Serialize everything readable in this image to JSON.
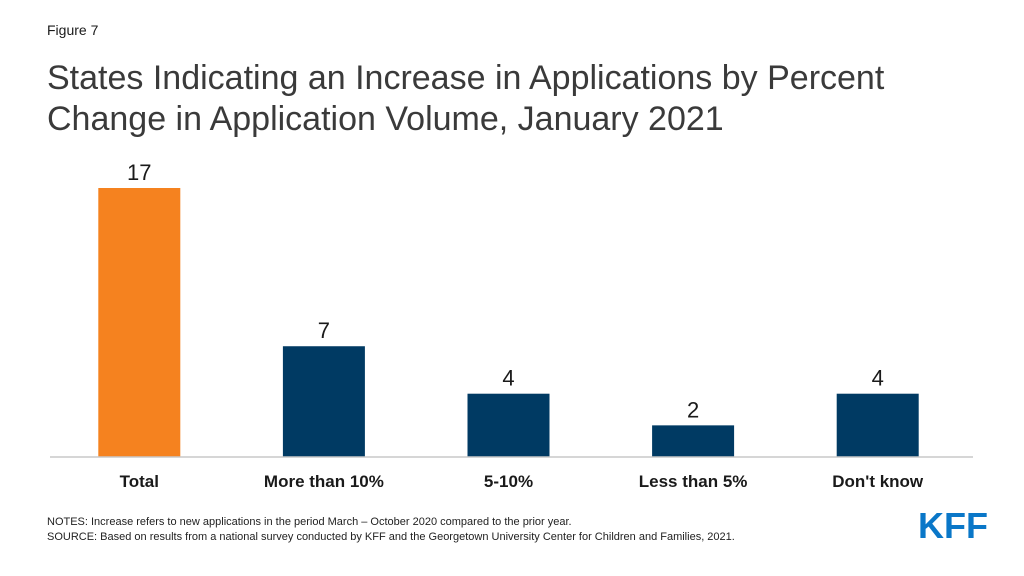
{
  "figure_label": "Figure 7",
  "title": "States Indicating an Increase in Applications by Percent Change in Application Volume, January 2021",
  "notes": {
    "line1": "NOTES: Increase refers to new applications in the period March – October 2020 compared to the prior year.",
    "line2": "SOURCE: Based on results from a national survey conducted by KFF and the Georgetown University Center for Children and Families, 2021."
  },
  "logo": {
    "text": "KFF",
    "color": "#0a77c8"
  },
  "colors": {
    "highlight": "#f5821f",
    "default": "#003a63",
    "axis": "#c8c8c8"
  },
  "chart_data": {
    "type": "bar",
    "categories": [
      "Total",
      "More than 10%",
      "5-10%",
      "Less than 5%",
      "Don't know"
    ],
    "values": [
      17,
      7,
      4,
      2,
      4
    ],
    "data_labels": [
      "17",
      "7",
      "4",
      "2",
      "4"
    ],
    "highlight_index": 0,
    "title": "",
    "xlabel": "",
    "ylabel": "",
    "ylim": [
      0,
      17
    ],
    "grid": false,
    "legend": "none"
  }
}
